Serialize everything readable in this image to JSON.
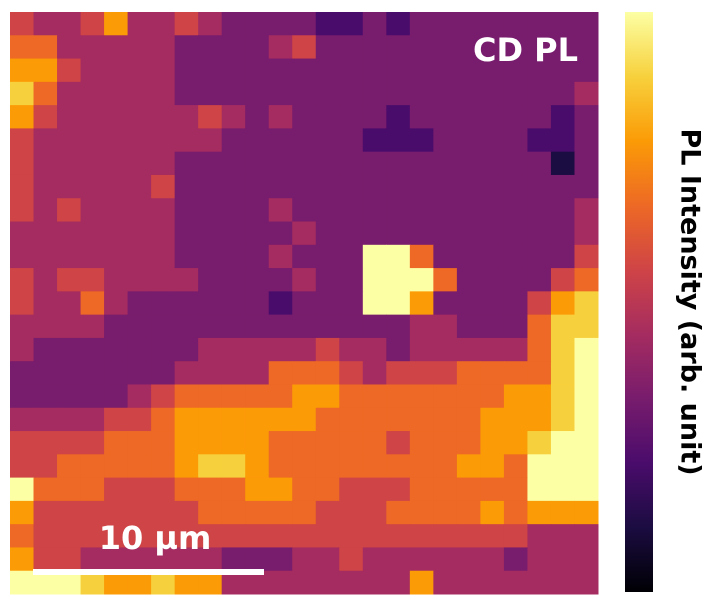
{
  "chart_data": {
    "type": "heatmap",
    "title": "CD PL",
    "colorbar_label": "PL Intensity (arb. unit)",
    "scalebar_label": "10 µm",
    "colormap": "inferno",
    "zlim": [
      0,
      9
    ],
    "values": [
      [
        5,
        4,
        4,
        5,
        7,
        4,
        4,
        5,
        4,
        3,
        3,
        3,
        3,
        2,
        2,
        3,
        2,
        3,
        3,
        3,
        3,
        3,
        3,
        3,
        3
      ],
      [
        6,
        6,
        4,
        4,
        4,
        4,
        4,
        3,
        3,
        3,
        3,
        4,
        5,
        3,
        3,
        3,
        3,
        3,
        3,
        3,
        3,
        3,
        3,
        3,
        3
      ],
      [
        7,
        7,
        5,
        4,
        4,
        4,
        4,
        3,
        3,
        3,
        3,
        3,
        3,
        3,
        3,
        3,
        3,
        3,
        3,
        3,
        3,
        3,
        3,
        3,
        3
      ],
      [
        8,
        6,
        4,
        4,
        4,
        4,
        4,
        3,
        3,
        3,
        3,
        3,
        3,
        3,
        3,
        3,
        3,
        3,
        3,
        3,
        3,
        3,
        3,
        3,
        4
      ],
      [
        7,
        5,
        4,
        4,
        4,
        4,
        4,
        4,
        5,
        4,
        3,
        4,
        3,
        3,
        3,
        3,
        2,
        3,
        3,
        3,
        3,
        3,
        3,
        2,
        3
      ],
      [
        5,
        4,
        4,
        4,
        4,
        4,
        4,
        4,
        4,
        3,
        3,
        3,
        3,
        3,
        3,
        2,
        2,
        2,
        3,
        3,
        3,
        3,
        2,
        2,
        3
      ],
      [
        5,
        4,
        4,
        4,
        4,
        4,
        4,
        3,
        3,
        3,
        3,
        3,
        3,
        3,
        3,
        3,
        3,
        3,
        3,
        3,
        3,
        3,
        3,
        1,
        3
      ],
      [
        5,
        4,
        4,
        4,
        4,
        4,
        5,
        3,
        3,
        3,
        3,
        3,
        3,
        3,
        3,
        3,
        3,
        3,
        3,
        3,
        3,
        3,
        3,
        3,
        3
      ],
      [
        5,
        4,
        5,
        4,
        4,
        4,
        4,
        3,
        3,
        3,
        3,
        4,
        3,
        3,
        3,
        3,
        3,
        3,
        3,
        3,
        3,
        3,
        3,
        3,
        4
      ],
      [
        4,
        4,
        4,
        4,
        4,
        4,
        4,
        3,
        3,
        3,
        3,
        3,
        4,
        3,
        3,
        3,
        3,
        3,
        3,
        3,
        3,
        3,
        3,
        3,
        4
      ],
      [
        4,
        4,
        4,
        4,
        4,
        4,
        4,
        3,
        3,
        3,
        3,
        4,
        3,
        3,
        3,
        9,
        9,
        6,
        3,
        3,
        3,
        3,
        3,
        3,
        5
      ],
      [
        5,
        4,
        5,
        5,
        4,
        4,
        4,
        4,
        3,
        3,
        3,
        3,
        4,
        3,
        3,
        9,
        9,
        9,
        6,
        3,
        3,
        3,
        3,
        5,
        6
      ],
      [
        5,
        4,
        4,
        6,
        4,
        3,
        3,
        3,
        3,
        3,
        3,
        2,
        3,
        3,
        3,
        9,
        9,
        7,
        3,
        3,
        3,
        3,
        5,
        7,
        8
      ],
      [
        4,
        4,
        4,
        4,
        3,
        3,
        3,
        3,
        3,
        3,
        3,
        3,
        3,
        3,
        3,
        3,
        3,
        4,
        4,
        3,
        3,
        3,
        6,
        8,
        8
      ],
      [
        4,
        3,
        3,
        3,
        3,
        3,
        3,
        3,
        4,
        4,
        4,
        4,
        4,
        5,
        4,
        4,
        3,
        4,
        4,
        4,
        4,
        4,
        6,
        8,
        9
      ],
      [
        3,
        3,
        3,
        3,
        3,
        3,
        3,
        4,
        4,
        4,
        4,
        6,
        6,
        6,
        5,
        4,
        5,
        5,
        5,
        6,
        6,
        6,
        6,
        8,
        9
      ],
      [
        3,
        3,
        3,
        3,
        3,
        4,
        5,
        6,
        6,
        6,
        6,
        6,
        7,
        7,
        6,
        6,
        6,
        6,
        6,
        6,
        6,
        7,
        7,
        8,
        9
      ],
      [
        4,
        4,
        4,
        4,
        5,
        5,
        6,
        7,
        7,
        7,
        7,
        7,
        7,
        6,
        6,
        6,
        6,
        6,
        6,
        6,
        7,
        7,
        7,
        8,
        9
      ],
      [
        5,
        5,
        5,
        5,
        6,
        6,
        6,
        7,
        7,
        7,
        7,
        6,
        6,
        6,
        6,
        6,
        5,
        6,
        6,
        6,
        7,
        7,
        8,
        9,
        9
      ],
      [
        5,
        5,
        6,
        6,
        6,
        6,
        6,
        7,
        8,
        8,
        7,
        6,
        6,
        6,
        6,
        6,
        6,
        6,
        6,
        7,
        7,
        6,
        9,
        9,
        9
      ],
      [
        9,
        6,
        6,
        6,
        5,
        5,
        5,
        6,
        6,
        6,
        7,
        7,
        6,
        6,
        5,
        5,
        5,
        6,
        6,
        6,
        6,
        6,
        9,
        9,
        9
      ],
      [
        7,
        5,
        5,
        5,
        5,
        5,
        5,
        5,
        6,
        6,
        6,
        6,
        6,
        5,
        5,
        5,
        6,
        6,
        6,
        6,
        7,
        6,
        7,
        7,
        7
      ],
      [
        6,
        5,
        5,
        5,
        5,
        5,
        5,
        5,
        5,
        5,
        5,
        5,
        5,
        5,
        5,
        5,
        5,
        5,
        5,
        5,
        5,
        5,
        4,
        4,
        4
      ],
      [
        7,
        5,
        5,
        4,
        4,
        4,
        4,
        4,
        4,
        3,
        3,
        3,
        4,
        4,
        5,
        4,
        4,
        4,
        4,
        4,
        4,
        3,
        4,
        4,
        4
      ],
      [
        9,
        9,
        9,
        8,
        7,
        7,
        8,
        7,
        7,
        4,
        4,
        4,
        4,
        4,
        4,
        4,
        4,
        7,
        4,
        4,
        4,
        4,
        4,
        4,
        4
      ]
    ]
  }
}
